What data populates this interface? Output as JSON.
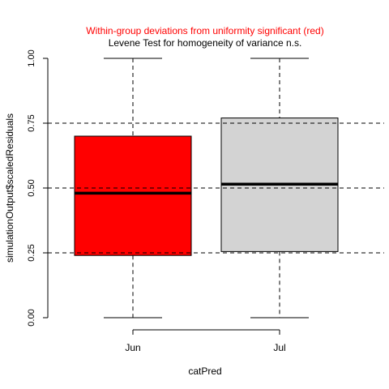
{
  "chart_data": {
    "type": "box",
    "title_line1": "Within-group deviations from uniformity significant (red)",
    "title_line2": "Levene Test for homogeneity of variance n.s.",
    "title_line1_color": "#ff0000",
    "xlabel": "catPred",
    "ylabel": "simulationOutput$scaledResiduals",
    "ylim": [
      0,
      1
    ],
    "yticks": [
      "0.00",
      "0.25",
      "0.50",
      "0.75",
      "1.00"
    ],
    "reference_lines": [
      0.25,
      0.5,
      0.75
    ],
    "categories": [
      "Jun",
      "Jul"
    ],
    "boxes": [
      {
        "category": "Jun",
        "min": 0.0,
        "q1": 0.24,
        "median": 0.48,
        "q3": 0.7,
        "max": 1.0,
        "fill": "#ff0000"
      },
      {
        "category": "Jul",
        "min": 0.0,
        "q1": 0.255,
        "median": 0.515,
        "q3": 0.77,
        "max": 1.0,
        "fill": "#d3d3d3"
      }
    ],
    "grid": false,
    "legend": "none"
  }
}
